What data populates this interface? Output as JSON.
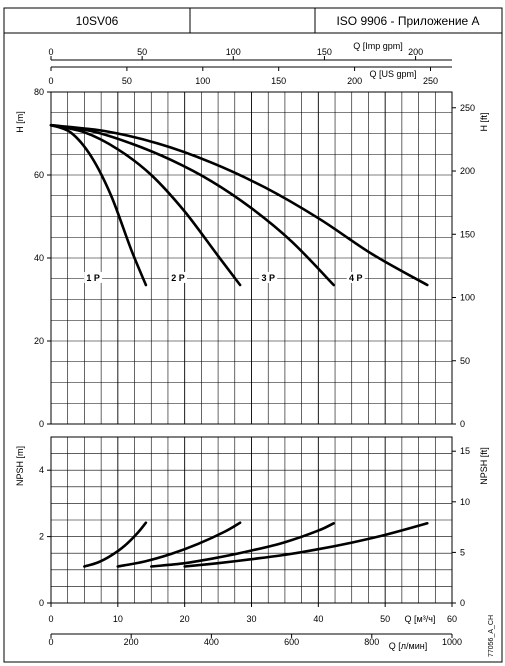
{
  "header": {
    "model": "10SV06",
    "middle": "",
    "standard": "ISO 9906 - Приложение A"
  },
  "doc_code": "77056_A_CH",
  "chart_data": [
    {
      "type": "line",
      "id": "head",
      "xlabel": "Q [м³/ч]",
      "ylabel": "H [m]",
      "ylabel_right": "H [ft]",
      "xlim": [
        0,
        60
      ],
      "ylim": [
        0,
        80
      ],
      "x_ticks": [
        0,
        10,
        20,
        30,
        40,
        50,
        60
      ],
      "y_ticks": [
        0,
        20,
        40,
        60,
        80
      ],
      "y_right_ticks": [
        0,
        50,
        100,
        150,
        200,
        250
      ],
      "grid": true,
      "series": [
        {
          "name": "1 P",
          "label_at": [
            6.3,
            35.2
          ],
          "x": [
            0,
            3,
            6,
            9,
            12,
            14.2
          ],
          "y": [
            72,
            70.2,
            64.5,
            55,
            42,
            33.5
          ]
        },
        {
          "name": "2 P",
          "label_at": [
            19,
            35.2
          ],
          "x": [
            0,
            5,
            10,
            15,
            20,
            25,
            28.3
          ],
          "y": [
            72,
            70.3,
            66.2,
            60,
            51.2,
            40.5,
            33.5
          ]
        },
        {
          "name": "3 P",
          "label_at": [
            32.5,
            35.2
          ],
          "x": [
            0,
            6,
            12,
            18,
            24,
            30,
            36,
            42.3
          ],
          "y": [
            72,
            70.6,
            67.6,
            63.6,
            58.5,
            52,
            44,
            33.5
          ]
        },
        {
          "name": "4 P",
          "label_at": [
            45.6,
            35.2
          ],
          "x": [
            0,
            8,
            16,
            24,
            32,
            40,
            48,
            56.3
          ],
          "y": [
            72,
            70.6,
            67.6,
            63,
            57,
            49.6,
            41,
            33.5
          ]
        }
      ]
    },
    {
      "type": "line",
      "id": "npsh",
      "xlabel": "Q [м³/ч]",
      "ylabel": "NPSH [m]",
      "ylabel_right": "NPSH [ft]",
      "xlim": [
        0,
        60
      ],
      "ylim": [
        0,
        5
      ],
      "x_ticks": [
        0,
        10,
        20,
        30,
        40,
        50,
        60
      ],
      "y_ticks": [
        0,
        2,
        4
      ],
      "y_right_ticks": [
        0,
        5,
        10,
        15
      ],
      "grid": true,
      "series": [
        {
          "x": [
            5,
            7,
            9,
            11,
            13,
            14.2
          ],
          "y": [
            1.1,
            1.22,
            1.43,
            1.72,
            2.12,
            2.42
          ]
        },
        {
          "x": [
            10,
            14,
            18,
            22,
            26,
            28.3
          ],
          "y": [
            1.1,
            1.25,
            1.48,
            1.78,
            2.15,
            2.42
          ]
        },
        {
          "x": [
            15,
            20,
            25,
            30,
            35,
            40,
            42.3
          ],
          "y": [
            1.1,
            1.2,
            1.37,
            1.58,
            1.83,
            2.18,
            2.4
          ]
        },
        {
          "x": [
            20,
            25,
            30,
            35,
            40,
            45,
            50,
            56.3
          ],
          "y": [
            1.1,
            1.2,
            1.32,
            1.45,
            1.62,
            1.82,
            2.05,
            2.4
          ]
        }
      ]
    }
  ],
  "axes": {
    "imp_gpm": {
      "label": "Q [Imp gpm]",
      "ticks": [
        0,
        50,
        100,
        150,
        200
      ],
      "factor": 3.6662
    },
    "us_gpm": {
      "label": "Q [US gpm]",
      "ticks": [
        0,
        50,
        100,
        150,
        200,
        250
      ],
      "factor": 4.4029
    },
    "l_min": {
      "label": "Q [л/мин]",
      "ticks": [
        0,
        200,
        400,
        600,
        800,
        1000
      ],
      "factor": 16.6667
    }
  }
}
